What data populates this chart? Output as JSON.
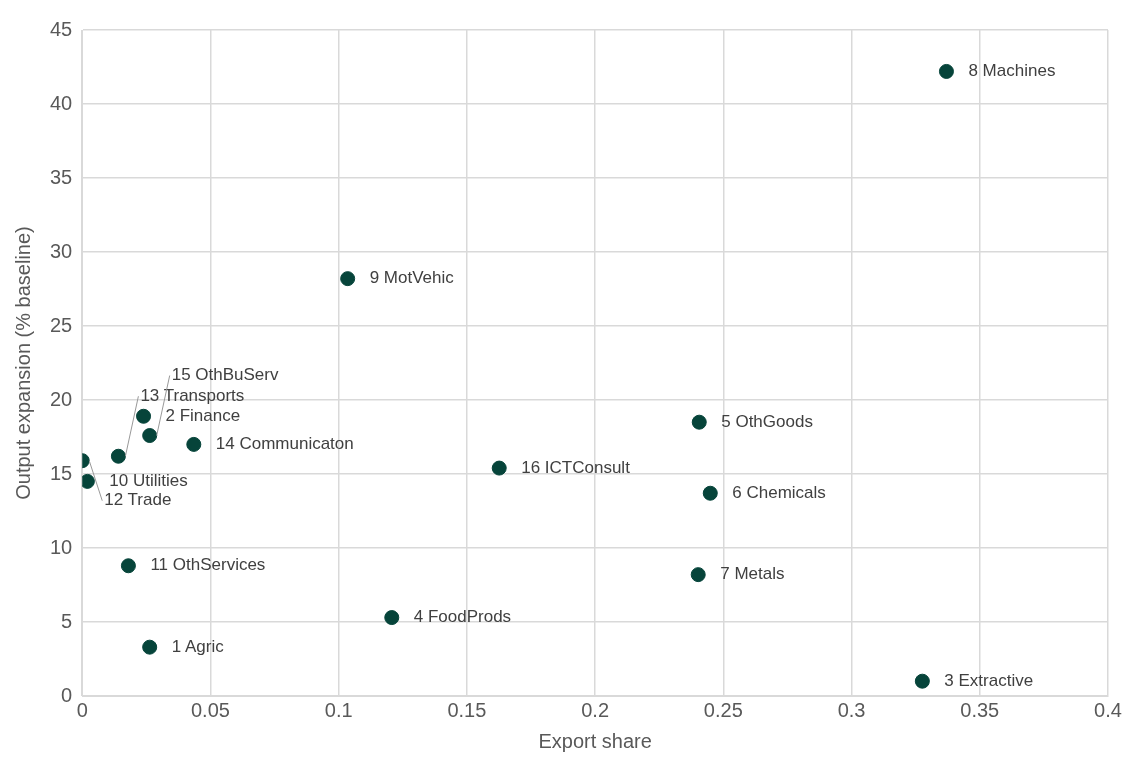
{
  "chart_data": {
    "type": "scatter",
    "xlabel": "Export share",
    "ylabel": "Output expansion (% baseline)",
    "xlim": [
      0,
      0.4
    ],
    "xticks": [
      0,
      0.05,
      0.1,
      0.15,
      0.2,
      0.25,
      0.3,
      0.35,
      0.4
    ],
    "ylim": [
      0,
      45
    ],
    "yticks": [
      0,
      5,
      10,
      15,
      20,
      25,
      30,
      35,
      40,
      45
    ],
    "grid": true,
    "legend": false,
    "marker": "circle",
    "series": [
      {
        "color": "#06443a",
        "x": [
          0.0263,
          0.0239,
          0.3276,
          0.1207,
          0.2406,
          0.2449,
          0.2402,
          0.337,
          0.1035,
          0.002,
          0.018,
          0,
          0.0141,
          0.0435,
          0.0263,
          0.1626
        ],
        "values": [
          3.3,
          18.9,
          1.0,
          5.3,
          18.5,
          13.7,
          8.2,
          42.2,
          28.2,
          14.5,
          8.8,
          15.9,
          16.2,
          17.0,
          17.6,
          15.4
        ]
      }
    ],
    "annotations": [
      {
        "text": "1 Agric",
        "x": 0.0263,
        "y": 3.3
      },
      {
        "text": "2 Finance",
        "x": 0.0239,
        "y": 18.9
      },
      {
        "text": "3 Extractive",
        "x": 0.3276,
        "y": 1.0
      },
      {
        "text": "4 FoodProds",
        "x": 0.1207,
        "y": 5.3
      },
      {
        "text": "5 OthGoods",
        "x": 0.2406,
        "y": 18.5
      },
      {
        "text": "6 Chemicals",
        "x": 0.2449,
        "y": 13.7
      },
      {
        "text": "7 Metals",
        "x": 0.2402,
        "y": 8.2
      },
      {
        "text": "8 Machines",
        "x": 0.337,
        "y": 42.2
      },
      {
        "text": "9 MotVehic",
        "x": 0.1035,
        "y": 28.2
      },
      {
        "text": "10 Utilities",
        "x": 0.002,
        "y": 14.5
      },
      {
        "text": "11 OthServices",
        "x": 0.018,
        "y": 8.8
      },
      {
        "text": "12 Trade",
        "x": 0,
        "y": 15.9
      },
      {
        "text": "13 Transports",
        "x": 0.0141,
        "y": 16.2
      },
      {
        "text": "14 Communicaton",
        "x": 0.0435,
        "y": 17.0
      },
      {
        "text": "15 OthBuServ",
        "x": 0.0263,
        "y": 17.6
      },
      {
        "text": "16 ICTConsult",
        "x": 0.1626,
        "y": 15.4
      }
    ]
  }
}
